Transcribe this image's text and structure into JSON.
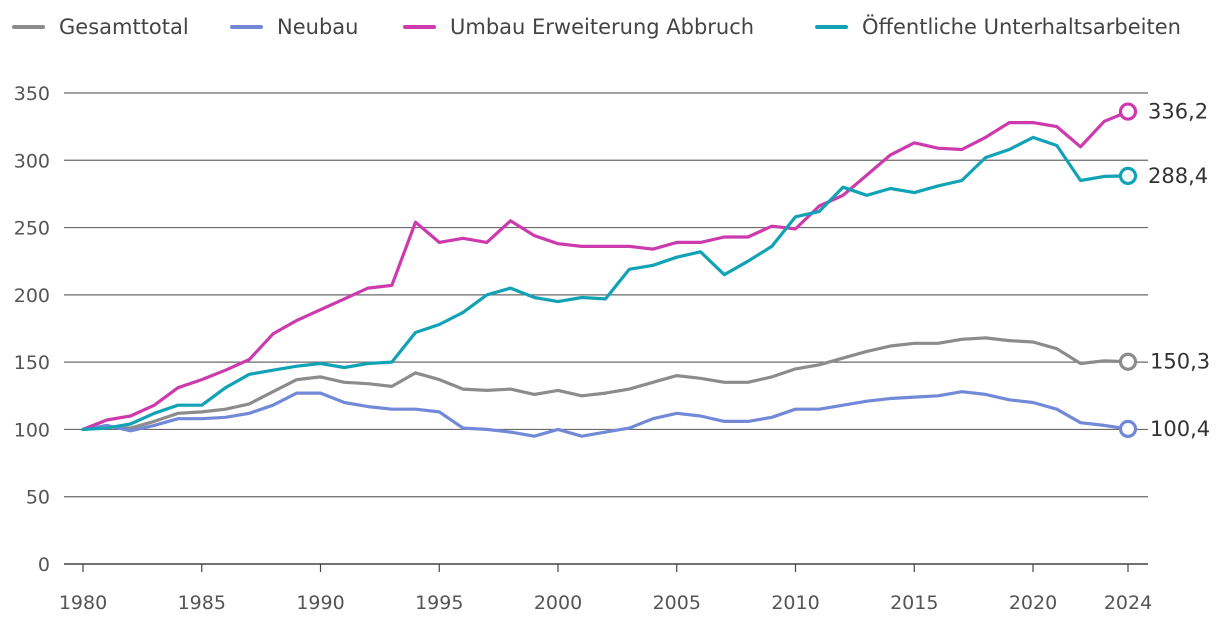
{
  "chart_data": {
    "type": "line",
    "title": "",
    "xlabel": "",
    "ylabel": "",
    "xlim": [
      1980,
      2024
    ],
    "ylim": [
      0,
      350
    ],
    "x_ticks": [
      1980,
      1985,
      1990,
      1995,
      2000,
      2005,
      2010,
      2015,
      2020,
      2024
    ],
    "y_ticks": [
      0,
      50,
      100,
      150,
      200,
      250,
      300,
      350
    ],
    "grid": true,
    "legend_position": "top",
    "x": [
      1980,
      1981,
      1982,
      1983,
      1984,
      1985,
      1986,
      1987,
      1988,
      1989,
      1990,
      1991,
      1992,
      1993,
      1994,
      1995,
      1996,
      1997,
      1998,
      1999,
      2000,
      2001,
      2002,
      2003,
      2004,
      2005,
      2006,
      2007,
      2008,
      2009,
      2010,
      2011,
      2012,
      2013,
      2014,
      2015,
      2016,
      2017,
      2018,
      2019,
      2020,
      2021,
      2022,
      2023,
      2024
    ],
    "series": [
      {
        "name": "Gesamttotal",
        "color": "#8c8c8c",
        "end_label": "150,3",
        "values": [
          100,
          102,
          101,
          106,
          112,
          113,
          115,
          119,
          128,
          137,
          139,
          135,
          134,
          132,
          142,
          137,
          130,
          129,
          130,
          126,
          129,
          125,
          127,
          130,
          135,
          140,
          138,
          135,
          135,
          139,
          145,
          148,
          153,
          158,
          162,
          164,
          164,
          167,
          168,
          166,
          165,
          160,
          149,
          151,
          150.3
        ]
      },
      {
        "name": "Neubau",
        "color": "#7289d8",
        "end_label": "100,4",
        "values": [
          100,
          103,
          99,
          103,
          108,
          108,
          109,
          112,
          118,
          127,
          127,
          120,
          117,
          115,
          115,
          113,
          101,
          100,
          98,
          95,
          100,
          95,
          98,
          101,
          108,
          112,
          110,
          106,
          106,
          109,
          115,
          115,
          118,
          121,
          123,
          124,
          125,
          128,
          126,
          122,
          120,
          115,
          105,
          103,
          100.4
        ]
      },
      {
        "name": "Umbau Erweiterung Abbruch",
        "color": "#cc3aad",
        "end_label": "336,2",
        "values": [
          100,
          107,
          110,
          118,
          131,
          137,
          144,
          152,
          171,
          181,
          189,
          197,
          205,
          207,
          254,
          239,
          242,
          239,
          255,
          244,
          238,
          236,
          236,
          236,
          234,
          239,
          239,
          243,
          243,
          251,
          249,
          266,
          274,
          289,
          304,
          313,
          309,
          308,
          317,
          328,
          328,
          325,
          310,
          329,
          336.2
        ]
      },
      {
        "name": "Öffentliche Unterhaltsarbeiten",
        "color": "#11a3b5",
        "end_label": "288,4",
        "values": [
          100,
          101,
          104,
          112,
          118,
          118,
          131,
          141,
          144,
          147,
          149,
          146,
          149,
          150,
          172,
          178,
          187,
          200,
          205,
          198,
          195,
          198,
          197,
          219,
          222,
          228,
          232,
          215,
          225,
          236,
          258,
          262,
          280,
          274,
          279,
          276,
          281,
          285,
          302,
          308,
          317,
          311,
          285,
          288,
          288.4
        ]
      }
    ]
  }
}
